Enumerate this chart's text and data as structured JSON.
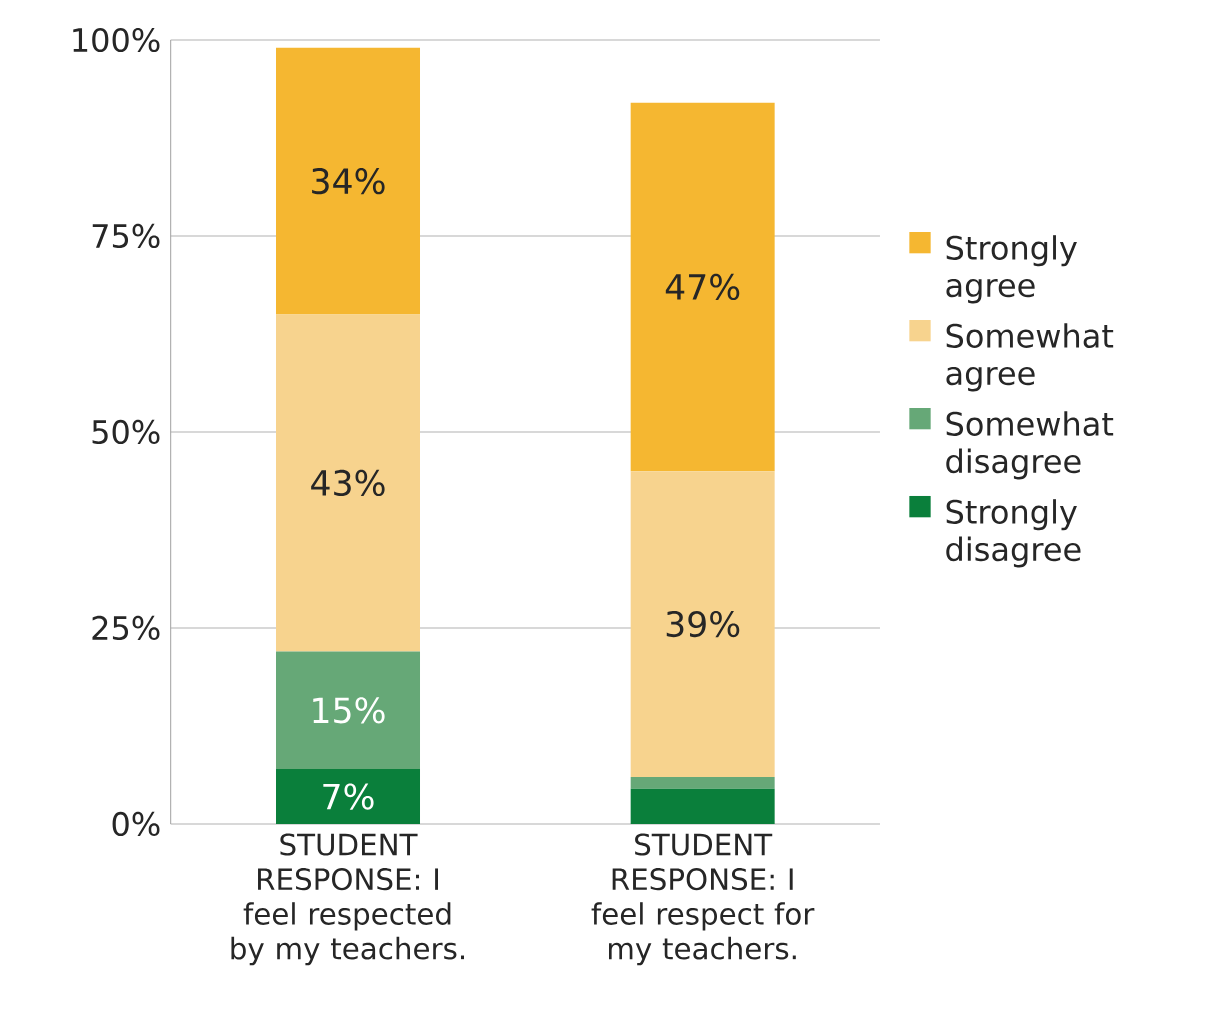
{
  "chart_data": {
    "type": "bar",
    "stacked": true,
    "categories": [
      "STUDENT RESPONSE: I feel respected by my teachers.",
      "STUDENT RESPONSE: I feel respect for my teachers."
    ],
    "series": [
      {
        "name": "Strongly disagree",
        "color": "#0a7f3b",
        "values": [
          7,
          4.5
        ],
        "value_labels": [
          "7%",
          null
        ]
      },
      {
        "name": "Somewhat disagree",
        "color": "#66a877",
        "values": [
          15,
          1.5
        ],
        "value_labels": [
          "15%",
          null
        ]
      },
      {
        "name": "Somewhat agree",
        "color": "#f7d38e",
        "values": [
          43,
          39
        ],
        "value_labels": [
          "43%",
          "39%"
        ]
      },
      {
        "name": "Strongly agree",
        "color": "#f5b731",
        "values": [
          34,
          47
        ],
        "value_labels": [
          "34%",
          "47%"
        ]
      }
    ],
    "ylim": [
      0,
      100
    ],
    "yticks": [
      {
        "value": 0,
        "label": "0%"
      },
      {
        "value": 25,
        "label": "25%"
      },
      {
        "value": 50,
        "label": "50%"
      },
      {
        "value": 75,
        "label": "75%"
      },
      {
        "value": 100,
        "label": "100%"
      }
    ],
    "grid": "y",
    "legend": "right"
  }
}
